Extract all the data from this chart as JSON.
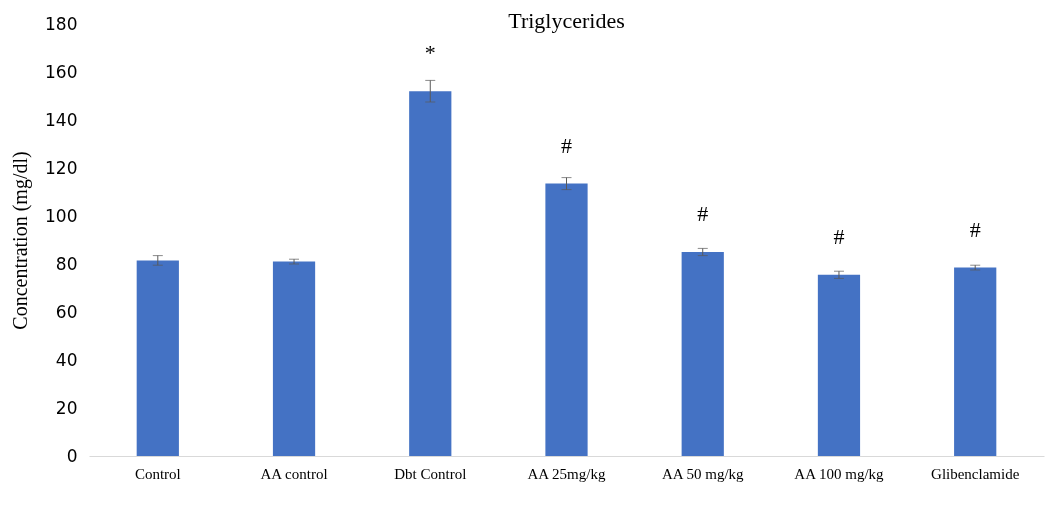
{
  "chart_data": {
    "type": "bar",
    "title": "Triglycerides",
    "ylabel": "Concentration (mg/dl)",
    "categories": [
      "Control",
      "AA control",
      "Dbt Control",
      "AA 25mg/kg",
      "AA 50 mg/kg",
      "AA 100 mg/kg",
      "Glibenclamide"
    ],
    "values": [
      81.5,
      81,
      152,
      113.5,
      85,
      75.5,
      78.5
    ],
    "errors": [
      2,
      1,
      4.5,
      2.5,
      1.5,
      1.5,
      1
    ],
    "color": "#4472c4",
    "ylim": [
      0,
      180
    ],
    "yticks": [
      0,
      20,
      40,
      60,
      80,
      100,
      120,
      140,
      160,
      180
    ],
    "grid": false,
    "annotations": [
      {
        "text": "*",
        "x": "Dbt Control",
        "y": 152
      },
      {
        "text": "#",
        "x": "AA 25mg/kg",
        "y": 113.5
      },
      {
        "text": "#",
        "x": "AA 50 mg/kg",
        "y": 85
      },
      {
        "text": "#",
        "x": "AA 100 mg/kg",
        "y": 75.5
      },
      {
        "text": "#",
        "x": "Glibenclamide",
        "y": 78.5
      }
    ]
  }
}
